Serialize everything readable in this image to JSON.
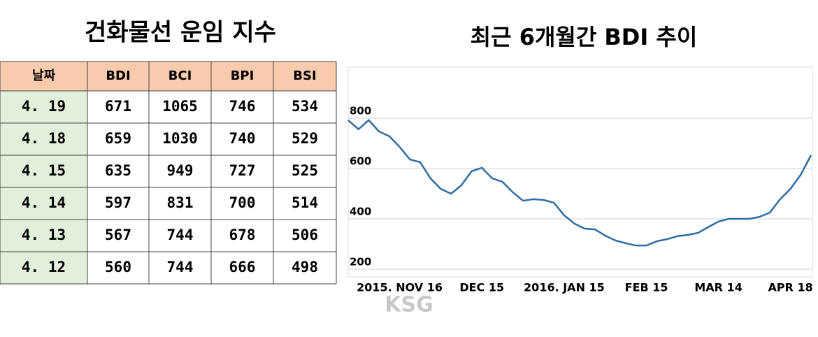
{
  "table": {
    "title": "건화물선 운임 지수",
    "header": [
      "날짜",
      "BDI",
      "BCI",
      "BPI",
      "BSI"
    ],
    "rows": [
      [
        "4. 19",
        671,
        1065,
        746,
        534
      ],
      [
        "4. 18",
        659,
        1030,
        740,
        529
      ],
      [
        "4. 15",
        635,
        949,
        727,
        525
      ],
      [
        "4. 14",
        597,
        831,
        700,
        514
      ],
      [
        "4. 13",
        567,
        744,
        678,
        506
      ],
      [
        "4. 12",
        560,
        744,
        666,
        498
      ]
    ]
  },
  "chart_data": {
    "type": "line",
    "title": "최근 6개월간 BDI 추이",
    "categories": [
      null,
      null,
      null,
      null,
      null,
      "2015. NOV 16",
      null,
      null,
      null,
      null,
      null,
      null,
      null,
      "DEC 15",
      null,
      null,
      null,
      null,
      null,
      null,
      null,
      "2016. JAN 15",
      null,
      null,
      null,
      null,
      null,
      null,
      null,
      "FEB 15",
      null,
      null,
      null,
      null,
      null,
      null,
      "MAR 14",
      null,
      null,
      null,
      null,
      null,
      null,
      "APR 18",
      null,
      null
    ],
    "series": [
      {
        "name": "BDI",
        "color": "#2e6da4",
        "values": [
          792,
          756,
          792,
          747,
          728,
          686,
          636,
          625,
          561,
          519,
          500,
          533,
          589,
          603,
          561,
          547,
          506,
          472,
          478,
          475,
          464,
          414,
          381,
          361,
          358,
          333,
          314,
          303,
          294,
          294,
          311,
          319,
          331,
          336,
          344,
          367,
          389,
          400,
          400,
          400,
          408,
          425,
          478,
          519,
          575,
          653
        ]
      }
    ],
    "ylim": [
      200,
      1000
    ],
    "yticks": [
      200,
      400,
      600,
      800
    ],
    "grid": true
  },
  "watermark": "KSG"
}
